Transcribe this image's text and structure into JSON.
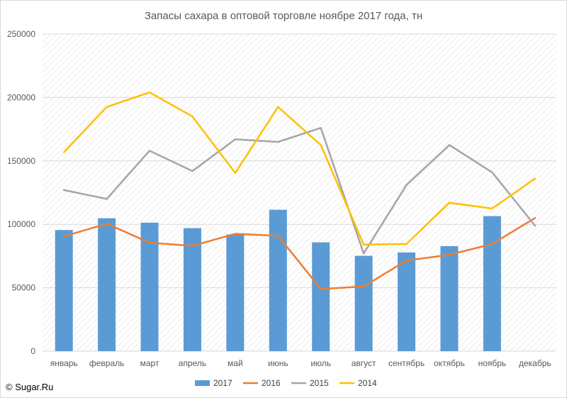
{
  "copyright": "© Sugar.Ru",
  "colors": {
    "2017": "#5b9bd5",
    "2016": "#ed7d31",
    "2015": "#a5a5a5",
    "2014": "#ffc000",
    "grid": "#d9d9d9",
    "plot_pattern": "#ececec"
  },
  "chart_data": {
    "type": "bar",
    "title": "Запасы сахара в оптовой торговле ноябре 2017 года, тн",
    "xlabel": "",
    "ylabel": "",
    "ylim": [
      0,
      250000
    ],
    "yticks": [
      0,
      50000,
      100000,
      150000,
      200000,
      250000
    ],
    "grid": true,
    "legend_position": "bottom",
    "categories": [
      "январь",
      "февраль",
      "март",
      "апрель",
      "май",
      "июнь",
      "июль",
      "август",
      "сентябрь",
      "октябрь",
      "ноябрь",
      "декабрь"
    ],
    "series": [
      {
        "name": "2017",
        "type": "bar",
        "values": [
          95500,
          104800,
          101300,
          97000,
          92000,
          111500,
          85800,
          75200,
          77800,
          82800,
          106500,
          null
        ]
      },
      {
        "name": "2016",
        "type": "line",
        "values": [
          90500,
          100500,
          85500,
          83000,
          92500,
          91000,
          49000,
          51000,
          71500,
          76000,
          84500,
          105000
        ]
      },
      {
        "name": "2015",
        "type": "line",
        "values": [
          127000,
          120000,
          158000,
          142000,
          167000,
          165000,
          176000,
          77000,
          131000,
          162500,
          141000,
          99000
        ]
      },
      {
        "name": "2014",
        "type": "line",
        "values": [
          157000,
          192500,
          204000,
          185000,
          140500,
          192500,
          162500,
          84000,
          84500,
          117000,
          112500,
          136000
        ]
      }
    ]
  }
}
